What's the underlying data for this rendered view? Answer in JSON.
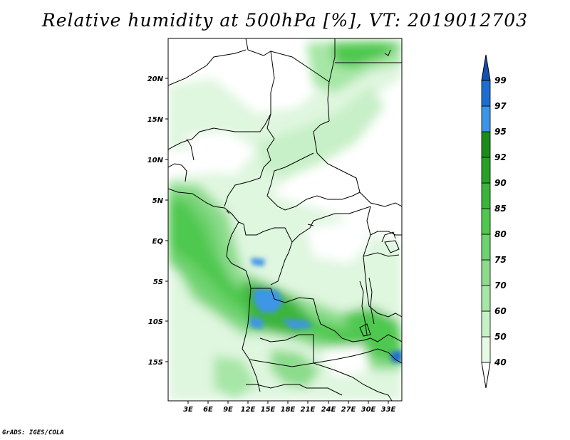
{
  "title": "Relative humidity at 500hPa [%], VT: 2019012703",
  "credit": "GrADS: IGES/COLA",
  "map": {
    "lat_ticks": [
      "20N",
      "15N",
      "10N",
      "5N",
      "EQ",
      "5S",
      "10S",
      "15S"
    ],
    "lon_ticks": [
      "3E",
      "6E",
      "9E",
      "12E",
      "15E",
      "18E",
      "21E",
      "24E",
      "27E",
      "30E",
      "33E"
    ]
  },
  "colorbar": {
    "levels": [
      "40",
      "50",
      "60",
      "70",
      "75",
      "80",
      "85",
      "90",
      "92",
      "95",
      "97",
      "99"
    ],
    "colors": [
      "#ffffff",
      "#e6fae6",
      "#c8f0c8",
      "#a6e6a6",
      "#8cdc8c",
      "#6ed26e",
      "#50c850",
      "#3cb43c",
      "#28a028",
      "#1a8c1a",
      "#3c96e6",
      "#1e6ed2",
      "#1450b4"
    ]
  }
}
